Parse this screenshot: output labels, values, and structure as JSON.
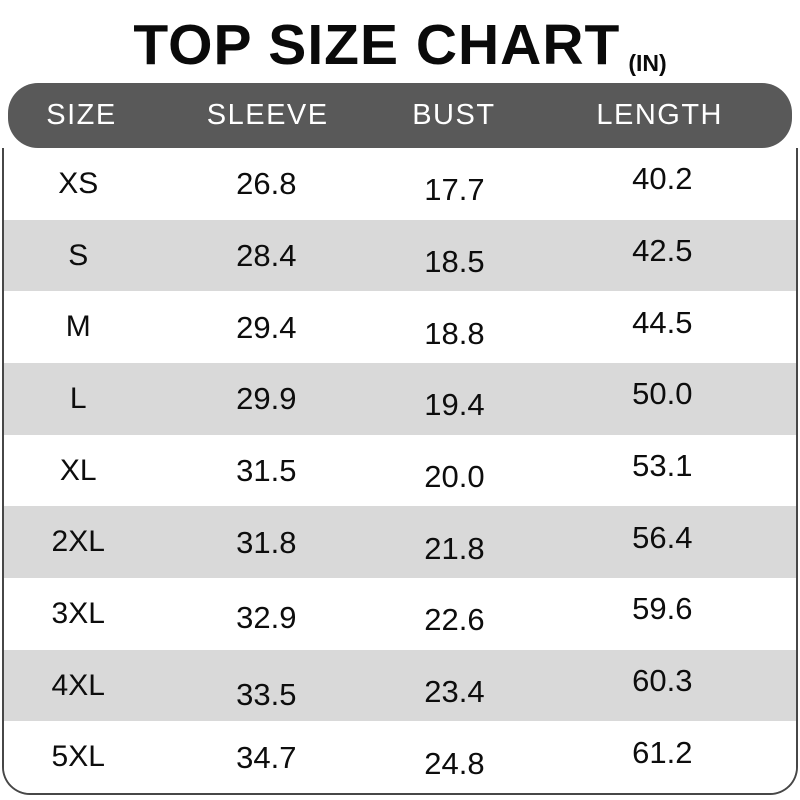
{
  "title": {
    "text": "TOP SIZE CHART",
    "unit": "(IN)"
  },
  "chart_data": {
    "type": "table",
    "title": "TOP SIZE CHART (IN)",
    "columns": [
      "SIZE",
      "SLEEVE",
      "BUST",
      "LENGTH"
    ],
    "rows": [
      [
        "XS",
        "26.8",
        "17.7",
        "40.2"
      ],
      [
        "S",
        "28.4",
        "18.5",
        "42.5"
      ],
      [
        "M",
        "29.4",
        "18.8",
        "44.5"
      ],
      [
        "L",
        "29.9",
        "19.4",
        "50.0"
      ],
      [
        "XL",
        "31.5",
        "20.0",
        "53.1"
      ],
      [
        "2XL",
        "31.8",
        "21.8",
        "56.4"
      ],
      [
        "3XL",
        "32.9",
        "22.6",
        "59.6"
      ],
      [
        "4XL",
        "33.5",
        "23.4",
        "60.3"
      ],
      [
        "5XL",
        "34.7",
        "24.8",
        "61.2"
      ]
    ],
    "striped_rows": [
      "S",
      "L",
      "2XL",
      "4XL"
    ]
  },
  "colors": {
    "header_bg": "#595959",
    "header_text": "#ffffff",
    "stripe": "#d9d9d9",
    "border": "#474747",
    "text": "#0d0d0d"
  }
}
